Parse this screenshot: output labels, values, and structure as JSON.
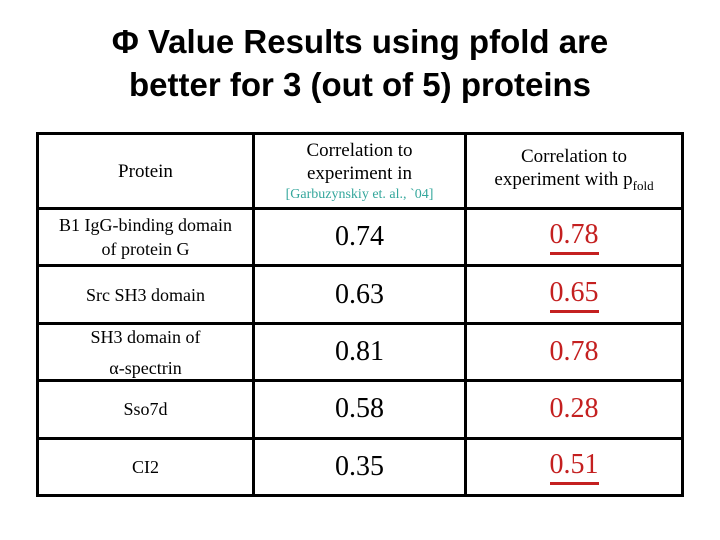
{
  "title": {
    "line1": "Φ Value Results using pfold are",
    "line2": "better for 3 (out of 5) proteins"
  },
  "table": {
    "header": {
      "protein": "Protein",
      "experiment_col_line1": "Correlation to",
      "experiment_col_line2": "experiment in",
      "experiment_col_citation": "[Garbuzynskiy et. al., `04]",
      "pfold_col_line1": "Correlation to",
      "pfold_col_line2": "experiment with p",
      "pfold_col_subscript": "fold"
    },
    "rows": [
      {
        "name_lines": [
          "B1 IgG-binding domain",
          "of protein G"
        ],
        "experiment_value": "0.74",
        "pfold_value": "0.78",
        "pfold_better": true
      },
      {
        "name_lines": [
          "Src SH3 domain",
          ""
        ],
        "experiment_value": "0.63",
        "pfold_value": "0.65",
        "pfold_better": true
      },
      {
        "name_lines": [
          "SH3 domain of",
          "α-spectrin"
        ],
        "experiment_value": "0.81",
        "pfold_value": "0.78",
        "pfold_better": false
      },
      {
        "name_lines": [
          "Sso7d",
          ""
        ],
        "experiment_value": "0.58",
        "pfold_value": "0.28",
        "pfold_better": false
      },
      {
        "name_lines": [
          "CI2",
          ""
        ],
        "experiment_value": "0.35",
        "pfold_value": "0.51",
        "pfold_better": true
      }
    ]
  },
  "colors": {
    "highlight_red": "#C42020",
    "citation_teal": "#35A79C",
    "border_black": "#000000"
  }
}
